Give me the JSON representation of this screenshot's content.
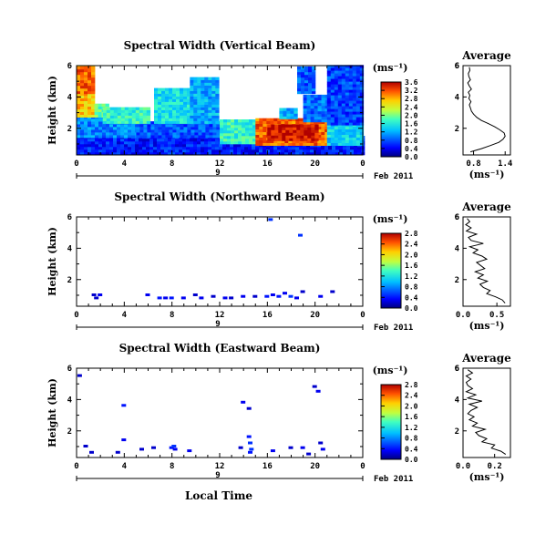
{
  "xlabel": "Local Time",
  "date_label": "Feb 2011",
  "day_label": "9",
  "unit_label": "(ms⁻¹)",
  "avg_title": "Average",
  "ylabel": "Height (km)",
  "x_ticks": [
    "0",
    "4",
    "8",
    "12",
    "16",
    "20",
    "0"
  ],
  "y_ticks": [
    "2",
    "4",
    "6"
  ],
  "chart_data": [
    {
      "type": "heatmap",
      "title": "Spectral Width (Vertical Beam)",
      "xlabel": "Local Time",
      "ylabel": "Height (km)",
      "colorbar": {
        "ticks": [
          "0.0",
          "0.4",
          "0.8",
          "1.2",
          "1.6",
          "2.0",
          "2.4",
          "2.8",
          "3.2",
          "3.6"
        ],
        "range": [
          0,
          3.6
        ],
        "unit": "(ms⁻¹)"
      },
      "xlim": [
        0,
        24
      ],
      "ylim": [
        0.3,
        6
      ],
      "regions": [
        {
          "x0": 0,
          "x1": 24,
          "y0": 0.3,
          "y1": 1.4,
          "v": 0.55
        },
        {
          "x0": 0,
          "x1": 5,
          "y0": 1.4,
          "y1": 2.7,
          "v": 1.0
        },
        {
          "x0": 5,
          "x1": 12,
          "y0": 1.4,
          "y1": 2.3,
          "v": 0.8
        },
        {
          "x0": 12,
          "x1": 15,
          "y0": 1.0,
          "y1": 2.5,
          "v": 1.7
        },
        {
          "x0": 15,
          "x1": 21,
          "y0": 0.9,
          "y1": 2.6,
          "v": 3.1
        },
        {
          "x0": 16,
          "x1": 20,
          "y0": 1.2,
          "y1": 2.2,
          "v": 3.5
        },
        {
          "x0": 21,
          "x1": 24,
          "y0": 0.9,
          "y1": 2.2,
          "v": 1.4
        },
        {
          "x0": 0,
          "x1": 1.5,
          "y0": 2.7,
          "y1": 5.9,
          "v": 2.7
        },
        {
          "x0": 0,
          "x1": 1.5,
          "y0": 4.2,
          "y1": 5.9,
          "v": 3.1
        },
        {
          "x0": 1.5,
          "x1": 2.5,
          "y0": 2.7,
          "y1": 3.5,
          "v": 1.9
        },
        {
          "x0": 2.2,
          "x1": 6.0,
          "y0": 2.3,
          "y1": 3.2,
          "v": 1.7
        },
        {
          "x0": 6.5,
          "x1": 9.5,
          "y0": 2.3,
          "y1": 4.5,
          "v": 1.5
        },
        {
          "x0": 9.5,
          "x1": 11.8,
          "y0": 2.3,
          "y1": 5.1,
          "v": 1.2
        },
        {
          "x0": 19,
          "x1": 22,
          "y0": 2.4,
          "y1": 4.0,
          "v": 0.9
        },
        {
          "x0": 21,
          "x1": 24,
          "y0": 2.2,
          "y1": 5.9,
          "v": 0.7
        },
        {
          "x0": 18.5,
          "x1": 20,
          "y0": 4.2,
          "y1": 5.9,
          "v": 0.8
        },
        {
          "x0": 17,
          "x1": 18.5,
          "y0": 2.6,
          "y1": 3.2,
          "v": 1.2
        }
      ],
      "average": {
        "xlim": [
          0.6,
          1.5
        ],
        "x_ticks": [
          "0.8",
          "1.4"
        ],
        "ylim": [
          0.3,
          6
        ],
        "y": [
          0.5,
          0.7,
          0.9,
          1.1,
          1.3,
          1.5,
          1.7,
          1.9,
          2.1,
          2.3,
          2.5,
          2.7,
          2.9,
          3.1,
          3.3,
          3.5,
          3.7,
          3.9,
          4.1,
          4.3,
          4.5,
          4.7,
          4.9,
          5.1,
          5.3,
          5.5,
          5.7,
          5.9
        ],
        "x": [
          0.74,
          0.95,
          1.12,
          1.28,
          1.36,
          1.4,
          1.38,
          1.3,
          1.2,
          1.08,
          0.95,
          0.86,
          0.8,
          0.76,
          0.74,
          0.72,
          0.75,
          0.71,
          0.73,
          0.7,
          0.76,
          0.72,
          0.69,
          0.74,
          0.71,
          0.7,
          0.73,
          0.72
        ]
      }
    },
    {
      "type": "heatmap",
      "title": "Spectral Width (Northward Beam)",
      "xlabel": "Local Time",
      "ylabel": "Height (km)",
      "colorbar": {
        "ticks": [
          "0.0",
          "0.4",
          "0.8",
          "1.2",
          "1.6",
          "2.0",
          "2.4",
          "2.8"
        ],
        "range": [
          0,
          2.8
        ],
        "unit": "(ms⁻¹)"
      },
      "xlim": [
        0,
        24
      ],
      "ylim": [
        0.3,
        6
      ],
      "points": [
        [
          1.5,
          1.0,
          0.2
        ],
        [
          2.0,
          1.0,
          0.3
        ],
        [
          1.7,
          0.8,
          0.2
        ],
        [
          6.0,
          1.0,
          0.3
        ],
        [
          7.0,
          0.8,
          0.4
        ],
        [
          7.5,
          0.8,
          0.3
        ],
        [
          8.0,
          0.8,
          0.4
        ],
        [
          9.0,
          0.8,
          0.3
        ],
        [
          10.0,
          1.0,
          0.2
        ],
        [
          10.5,
          0.8,
          0.3
        ],
        [
          11.5,
          0.9,
          0.2
        ],
        [
          12.5,
          0.8,
          0.3
        ],
        [
          13.0,
          0.8,
          0.2
        ],
        [
          14.0,
          0.9,
          0.3
        ],
        [
          15.0,
          0.9,
          0.2
        ],
        [
          16.0,
          0.9,
          0.4
        ],
        [
          16.5,
          1.0,
          0.3
        ],
        [
          17.0,
          0.9,
          0.4
        ],
        [
          17.5,
          1.1,
          0.3
        ],
        [
          18.0,
          0.9,
          0.5
        ],
        [
          18.5,
          0.8,
          0.3
        ],
        [
          19.0,
          1.2,
          0.2
        ],
        [
          20.5,
          0.9,
          0.3
        ],
        [
          21.5,
          1.2,
          0.2
        ],
        [
          16.3,
          5.8,
          0.5
        ],
        [
          18.8,
          4.8,
          0.5
        ]
      ],
      "average": {
        "xlim": [
          0.0,
          0.7
        ],
        "x_ticks": [
          "0.0",
          "0.5"
        ],
        "ylim": [
          0.3,
          6
        ],
        "y": [
          0.5,
          0.7,
          0.9,
          1.1,
          1.3,
          1.5,
          1.7,
          1.9,
          2.1,
          2.3,
          2.5,
          2.7,
          2.9,
          3.1,
          3.3,
          3.5,
          3.7,
          3.9,
          4.1,
          4.3,
          4.5,
          4.7,
          4.9,
          5.1,
          5.3,
          5.5,
          5.7,
          5.9
        ],
        "x": [
          0.62,
          0.58,
          0.48,
          0.35,
          0.4,
          0.3,
          0.25,
          0.36,
          0.22,
          0.3,
          0.18,
          0.32,
          0.26,
          0.2,
          0.35,
          0.28,
          0.15,
          0.22,
          0.1,
          0.3,
          0.12,
          0.08,
          0.2,
          0.05,
          0.12,
          0.04,
          0.1,
          0.06
        ]
      }
    },
    {
      "type": "heatmap",
      "title": "Spectral Width (Eastward Beam)",
      "xlabel": "Local Time",
      "ylabel": "Height (km)",
      "colorbar": {
        "ticks": [
          "0.0",
          "0.4",
          "0.8",
          "1.2",
          "1.6",
          "2.0",
          "2.4",
          "2.8"
        ],
        "range": [
          0,
          2.8
        ],
        "unit": "(ms⁻¹)"
      },
      "xlim": [
        0,
        24
      ],
      "ylim": [
        0.3,
        6
      ],
      "points": [
        [
          0.3,
          5.5,
          0.2
        ],
        [
          0.8,
          1.0,
          0.2
        ],
        [
          1.3,
          0.6,
          0.2
        ],
        [
          3.5,
          0.6,
          0.2
        ],
        [
          4.0,
          3.6,
          0.4
        ],
        [
          4.0,
          1.4,
          0.3
        ],
        [
          5.5,
          0.8,
          0.2
        ],
        [
          6.5,
          0.9,
          0.2
        ],
        [
          8.0,
          0.9,
          0.4
        ],
        [
          8.2,
          1.0,
          0.5
        ],
        [
          8.3,
          0.8,
          0.3
        ],
        [
          9.5,
          0.7,
          0.3
        ],
        [
          14.0,
          3.8,
          0.3
        ],
        [
          14.5,
          3.4,
          0.2
        ],
        [
          14.5,
          1.6,
          0.4
        ],
        [
          14.6,
          1.2,
          0.5
        ],
        [
          14.7,
          0.8,
          0.5
        ],
        [
          14.6,
          0.6,
          0.4
        ],
        [
          16.5,
          0.7,
          0.3
        ],
        [
          18.0,
          0.9,
          0.2
        ],
        [
          19.0,
          0.9,
          0.3
        ],
        [
          19.5,
          0.5,
          0.2
        ],
        [
          20.0,
          4.8,
          0.2
        ],
        [
          20.3,
          4.5,
          0.3
        ],
        [
          20.5,
          1.2,
          0.2
        ],
        [
          20.7,
          0.8,
          0.3
        ],
        [
          13.8,
          0.9,
          0.2
        ]
      ],
      "average": {
        "xlim": [
          0.0,
          0.3
        ],
        "x_ticks": [
          "0.0",
          "0.2"
        ],
        "ylim": [
          0.3,
          6
        ],
        "y": [
          0.5,
          0.7,
          0.9,
          1.1,
          1.3,
          1.5,
          1.7,
          1.9,
          2.1,
          2.3,
          2.5,
          2.7,
          2.9,
          3.1,
          3.3,
          3.5,
          3.7,
          3.9,
          4.1,
          4.3,
          4.5,
          4.7,
          4.9,
          5.1,
          5.3,
          5.5,
          5.7,
          5.9
        ],
        "x": [
          0.27,
          0.24,
          0.18,
          0.2,
          0.12,
          0.15,
          0.1,
          0.08,
          0.14,
          0.06,
          0.09,
          0.04,
          0.07,
          0.03,
          0.05,
          0.09,
          0.04,
          0.12,
          0.03,
          0.08,
          0.02,
          0.06,
          0.03,
          0.02,
          0.05,
          0.02,
          0.06,
          0.03
        ]
      }
    }
  ]
}
